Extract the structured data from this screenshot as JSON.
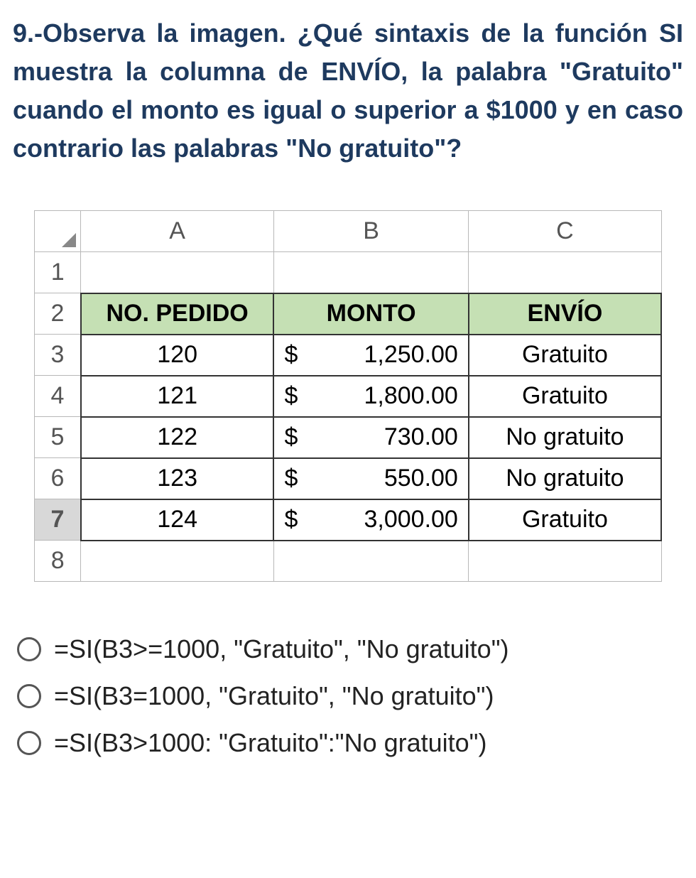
{
  "question": "9.-Observa la imagen. ¿Qué sintaxis de la función SI muestra la columna de ENVÍO, la palabra \"Gratuito\" cuando el monto es igual o superior a $1000 y en caso contrario las palabras \"No gratuito\"?",
  "spreadsheet": {
    "column_letters": [
      "A",
      "B",
      "C"
    ],
    "row_numbers": [
      "1",
      "2",
      "3",
      "4",
      "5",
      "6",
      "7",
      "8"
    ],
    "selected_row": 7,
    "header_row": {
      "pedido": "NO. PEDIDO",
      "monto": "MONTO",
      "envio": "ENVÍO"
    },
    "data_rows": [
      {
        "pedido": "120",
        "monto_sym": "$",
        "monto_val": "1,250.00",
        "envio": "Gratuito"
      },
      {
        "pedido": "121",
        "monto_sym": "$",
        "monto_val": "1,800.00",
        "envio": "Gratuito"
      },
      {
        "pedido": "122",
        "monto_sym": "$",
        "monto_val": "730.00",
        "envio": "No gratuito"
      },
      {
        "pedido": "123",
        "monto_sym": "$",
        "monto_val": "550.00",
        "envio": "No gratuito"
      },
      {
        "pedido": "124",
        "monto_sym": "$",
        "monto_val": "3,000.00",
        "envio": "Gratuito"
      }
    ],
    "colors": {
      "header_bg": "#c5e0b4",
      "cell_border": "#333333",
      "grid_border": "#b8b8b8"
    }
  },
  "options": [
    "=SI(B3>=1000, \"Gratuito\", \"No gratuito\")",
    "=SI(B3=1000, \"Gratuito\", \"No gratuito\")",
    "=SI(B3>1000: \"Gratuito\":\"No gratuito\")"
  ]
}
